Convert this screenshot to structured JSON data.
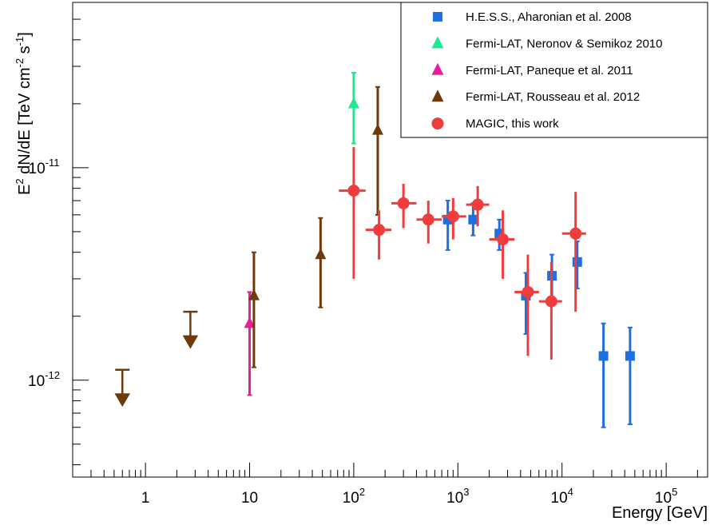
{
  "chart_data": {
    "type": "scatter",
    "xlabel": "Energy [GeV]",
    "ylabel": {
      "p1": "E",
      "sup1": "2",
      "p2": " dN/dE [TeV cm",
      "sup2": "-2",
      "p3": " s",
      "sup3": "-1",
      "p4": "]"
    },
    "x_scale": "log",
    "y_scale": "log",
    "xlim": [
      0.2,
      250000
    ],
    "ylim": [
      3.5e-13,
      6e-11
    ],
    "grid": false,
    "legend_position": "top-right",
    "x_ticks": [
      {
        "value": 1,
        "base": "1",
        "exp": ""
      },
      {
        "value": 10,
        "base": "10",
        "exp": ""
      },
      {
        "value": 100,
        "base": "10",
        "exp": "2"
      },
      {
        "value": 1000,
        "base": "10",
        "exp": "3"
      },
      {
        "value": 10000,
        "base": "10",
        "exp": "4"
      },
      {
        "value": 100000,
        "base": "10",
        "exp": "5"
      }
    ],
    "y_ticks": [
      {
        "value": 1e-12,
        "base": "10",
        "exp": "-12"
      },
      {
        "value": 1e-11,
        "base": "10",
        "exp": "-11"
      }
    ],
    "series": [
      {
        "name": "H.E.S.S., Aharonian et al. 2008",
        "color": "#1e6fe0",
        "marker": "square",
        "points": [
          {
            "x": 800,
            "y": 5.7e-12,
            "ylo": 4.1e-12,
            "yhi": 7e-12
          },
          {
            "x": 1400,
            "y": 5.7e-12,
            "ylo": 4.8e-12,
            "yhi": 6.8e-12
          },
          {
            "x": 2500,
            "y": 4.9e-12,
            "ylo": 4.1e-12,
            "yhi": 5.7e-12
          },
          {
            "x": 4500,
            "y": 2.5e-12,
            "ylo": 1.65e-12,
            "yhi": 3.2e-12
          },
          {
            "x": 8000,
            "y": 3.1e-12,
            "ylo": 2.4e-12,
            "yhi": 3.9e-12
          },
          {
            "x": 14000,
            "y": 3.6e-12,
            "ylo": 2.7e-12,
            "yhi": 4.5e-12
          },
          {
            "x": 25000,
            "y": 1.3e-12,
            "ylo": 6e-13,
            "yhi": 1.85e-12
          },
          {
            "x": 45000,
            "y": 1.3e-12,
            "ylo": 6.2e-13,
            "yhi": 1.77e-12
          }
        ]
      },
      {
        "name": "Fermi-LAT, Neronov & Semikoz 2010",
        "color": "#1ee890",
        "marker": "triangle-up",
        "points": [
          {
            "x": 100,
            "y": 2e-11,
            "ylo": 1.3e-11,
            "yhi": 2.8e-11
          }
        ]
      },
      {
        "name": "Fermi-LAT, Paneque et al. 2011",
        "color": "#e61e9c",
        "marker": "triangle-up",
        "points": [
          {
            "x": 10,
            "y": 1.85e-12,
            "ylo": 8.5e-13,
            "yhi": 2.6e-12
          }
        ]
      },
      {
        "name": "Fermi-LAT, Rousseau et al. 2012",
        "color": "#6e3a0a",
        "marker": "triangle-up",
        "points": [
          {
            "x": 11,
            "y": 2.5e-12,
            "ylo": 1.15e-12,
            "yhi": 4e-12
          },
          {
            "x": 48,
            "y": 3.9e-12,
            "ylo": 2.2e-12,
            "yhi": 5.8e-12
          },
          {
            "x": 170,
            "y": 1.5e-11,
            "ylo": 6e-12,
            "yhi": 2.4e-11
          }
        ],
        "upper_limits": [
          {
            "x": 0.6,
            "y": 1.12e-12
          },
          {
            "x": 2.7,
            "y": 2.1e-12
          }
        ]
      },
      {
        "name": "MAGIC, this work",
        "color": "#f03c3c",
        "marker": "circle",
        "points": [
          {
            "x": 100,
            "y": 7.8e-12,
            "ylo": 3e-12,
            "yhi": 1.25e-11,
            "xlo": 72,
            "xhi": 130
          },
          {
            "x": 175,
            "y": 5.1e-12,
            "ylo": 3.7e-12,
            "yhi": 6.3e-12,
            "xlo": 130,
            "xhi": 230
          },
          {
            "x": 300,
            "y": 6.8e-12,
            "ylo": 5.2e-12,
            "yhi": 8.4e-12,
            "xlo": 230,
            "xhi": 400
          },
          {
            "x": 520,
            "y": 5.7e-12,
            "ylo": 4.4e-12,
            "yhi": 7e-12,
            "xlo": 400,
            "xhi": 700
          },
          {
            "x": 900,
            "y": 5.9e-12,
            "ylo": 4.6e-12,
            "yhi": 7.2e-12,
            "xlo": 700,
            "xhi": 1200
          },
          {
            "x": 1550,
            "y": 6.7e-12,
            "ylo": 5.3e-12,
            "yhi": 8.2e-12,
            "xlo": 1200,
            "xhi": 2000
          },
          {
            "x": 2700,
            "y": 4.6e-12,
            "ylo": 3e-12,
            "yhi": 6.3e-12,
            "xlo": 2000,
            "xhi": 3500
          },
          {
            "x": 4700,
            "y": 2.6e-12,
            "ylo": 1.3e-12,
            "yhi": 3.9e-12,
            "xlo": 3500,
            "xhi": 6000
          },
          {
            "x": 7900,
            "y": 2.35e-12,
            "ylo": 1.25e-12,
            "yhi": 3.6e-12,
            "xlo": 6000,
            "xhi": 10000
          },
          {
            "x": 13500,
            "y": 4.9e-12,
            "ylo": 2.1e-12,
            "yhi": 7.7e-12,
            "xlo": 10000,
            "xhi": 17000
          }
        ]
      }
    ]
  }
}
